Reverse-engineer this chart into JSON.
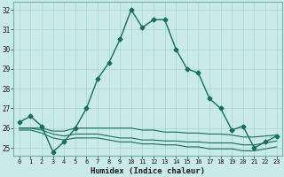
{
  "xlabel": "Humidex (Indice chaleur)",
  "background_color": "#c8eaea",
  "grid_color": "#a8d4d2",
  "line_color": "#1a6b60",
  "xlim": [
    -0.5,
    23.5
  ],
  "ylim": [
    24.6,
    32.4
  ],
  "yticks": [
    25,
    26,
    27,
    28,
    29,
    30,
    31,
    32
  ],
  "xticks": [
    0,
    1,
    2,
    3,
    4,
    5,
    6,
    7,
    8,
    9,
    10,
    11,
    12,
    13,
    14,
    15,
    16,
    17,
    18,
    19,
    20,
    21,
    22,
    23
  ],
  "series": [
    {
      "x": [
        0,
        1,
        2,
        3,
        4,
        5,
        6,
        7,
        8,
        9,
        10,
        11,
        12,
        13,
        14,
        15,
        16,
        17,
        18,
        19,
        20,
        21,
        22,
        23
      ],
      "y": [
        26.3,
        26.6,
        26.1,
        24.8,
        25.3,
        26.0,
        27.0,
        28.5,
        29.3,
        30.5,
        32.0,
        31.1,
        31.5,
        31.5,
        30.0,
        29.0,
        28.8,
        27.5,
        27.0,
        25.9,
        26.1,
        25.0,
        25.3,
        25.6
      ],
      "marker": "D",
      "linewidth": 1.0,
      "markersize": 2.5
    },
    {
      "x": [
        0,
        1,
        2,
        3,
        4,
        5,
        6,
        7,
        8,
        9,
        10,
        11,
        12,
        13,
        14,
        15,
        16,
        17,
        18,
        19,
        20,
        21,
        22,
        23
      ],
      "y": [
        26.0,
        26.0,
        26.0,
        25.85,
        25.85,
        26.0,
        26.0,
        26.0,
        26.0,
        26.0,
        26.0,
        25.9,
        25.9,
        25.8,
        25.8,
        25.75,
        25.75,
        25.7,
        25.7,
        25.65,
        25.55,
        25.55,
        25.6,
        25.65
      ],
      "marker": null,
      "linewidth": 0.8
    },
    {
      "x": [
        0,
        1,
        2,
        3,
        4,
        5,
        6,
        7,
        8,
        9,
        10,
        11,
        12,
        13,
        14,
        15,
        16,
        17,
        18,
        19,
        20,
        21,
        22,
        23
      ],
      "y": [
        26.0,
        26.0,
        25.9,
        25.7,
        25.6,
        25.7,
        25.7,
        25.7,
        25.6,
        25.5,
        25.5,
        25.4,
        25.4,
        25.35,
        25.35,
        25.3,
        25.3,
        25.25,
        25.25,
        25.25,
        25.15,
        25.15,
        25.25,
        25.35
      ],
      "marker": null,
      "linewidth": 0.8
    },
    {
      "x": [
        0,
        1,
        2,
        3,
        4,
        5,
        6,
        7,
        8,
        9,
        10,
        11,
        12,
        13,
        14,
        15,
        16,
        17,
        18,
        19,
        20,
        21,
        22,
        23
      ],
      "y": [
        25.9,
        25.9,
        25.75,
        25.5,
        25.4,
        25.5,
        25.5,
        25.5,
        25.4,
        25.3,
        25.3,
        25.2,
        25.2,
        25.15,
        25.15,
        25.05,
        25.05,
        24.95,
        24.95,
        24.95,
        24.85,
        24.85,
        24.95,
        25.05
      ],
      "marker": null,
      "linewidth": 0.8
    }
  ]
}
